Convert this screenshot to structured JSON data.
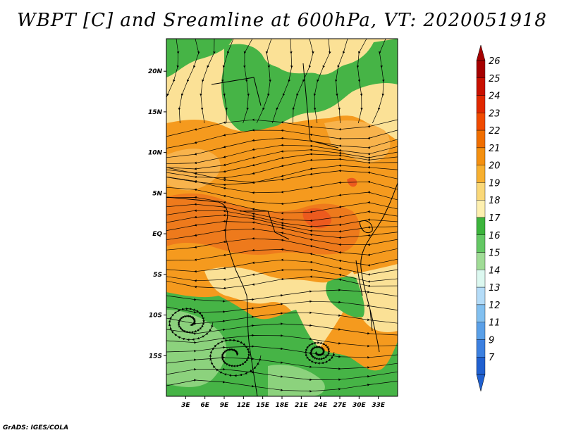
{
  "title": "WBPT [C] and Sreamline at 600hPa, VT: 2020051918",
  "footer": "GrADS: IGES/COLA",
  "map": {
    "lon_range": [
      0,
      36
    ],
    "lat_range": [
      -20,
      24
    ],
    "lat_ticks": [
      {
        "value": 20,
        "label": "20N"
      },
      {
        "value": 15,
        "label": "15N"
      },
      {
        "value": 10,
        "label": "10N"
      },
      {
        "value": 5,
        "label": "5N"
      },
      {
        "value": 0,
        "label": "EQ"
      },
      {
        "value": -5,
        "label": "5S"
      },
      {
        "value": -10,
        "label": "10S"
      },
      {
        "value": -15,
        "label": "15S"
      }
    ],
    "lon_ticks": [
      {
        "value": 3,
        "label": "3E"
      },
      {
        "value": 6,
        "label": "6E"
      },
      {
        "value": 9,
        "label": "9E"
      },
      {
        "value": 12,
        "label": "12E"
      },
      {
        "value": 15,
        "label": "15E"
      },
      {
        "value": 18,
        "label": "18E"
      },
      {
        "value": 21,
        "label": "21E"
      },
      {
        "value": 24,
        "label": "24E"
      },
      {
        "value": 27,
        "label": "27E"
      },
      {
        "value": 30,
        "label": "30E"
      },
      {
        "value": 33,
        "label": "33E"
      }
    ]
  },
  "colorbar": {
    "labels": [
      "26",
      "25",
      "24",
      "23",
      "22",
      "21",
      "20",
      "19",
      "18",
      "17",
      "16",
      "15",
      "14",
      "13",
      "12",
      "11",
      "9",
      "7"
    ],
    "colors": [
      "#a50000",
      "#c81000",
      "#e02800",
      "#f04a00",
      "#f06e00",
      "#f49010",
      "#f7b030",
      "#fad878",
      "#fef0b0",
      "#3cb43c",
      "#64c864",
      "#a0dc96",
      "#dcf8f0",
      "#b4dcf8",
      "#82c0f0",
      "#5aa0e8",
      "#3c80e0",
      "#2060d0"
    ],
    "arrow_top_color": "#a50000",
    "arrow_bottom_color": "#2060d0"
  },
  "colors": {
    "green_dark": "#46b446",
    "green_light": "#8cd27d",
    "yellow": "#fbe196",
    "orange_light": "#f8b34c",
    "orange": "#f59a1e",
    "orange_dark": "#ee7a1c",
    "red_spot": "#ec5a1e",
    "streamline": "#000000"
  }
}
